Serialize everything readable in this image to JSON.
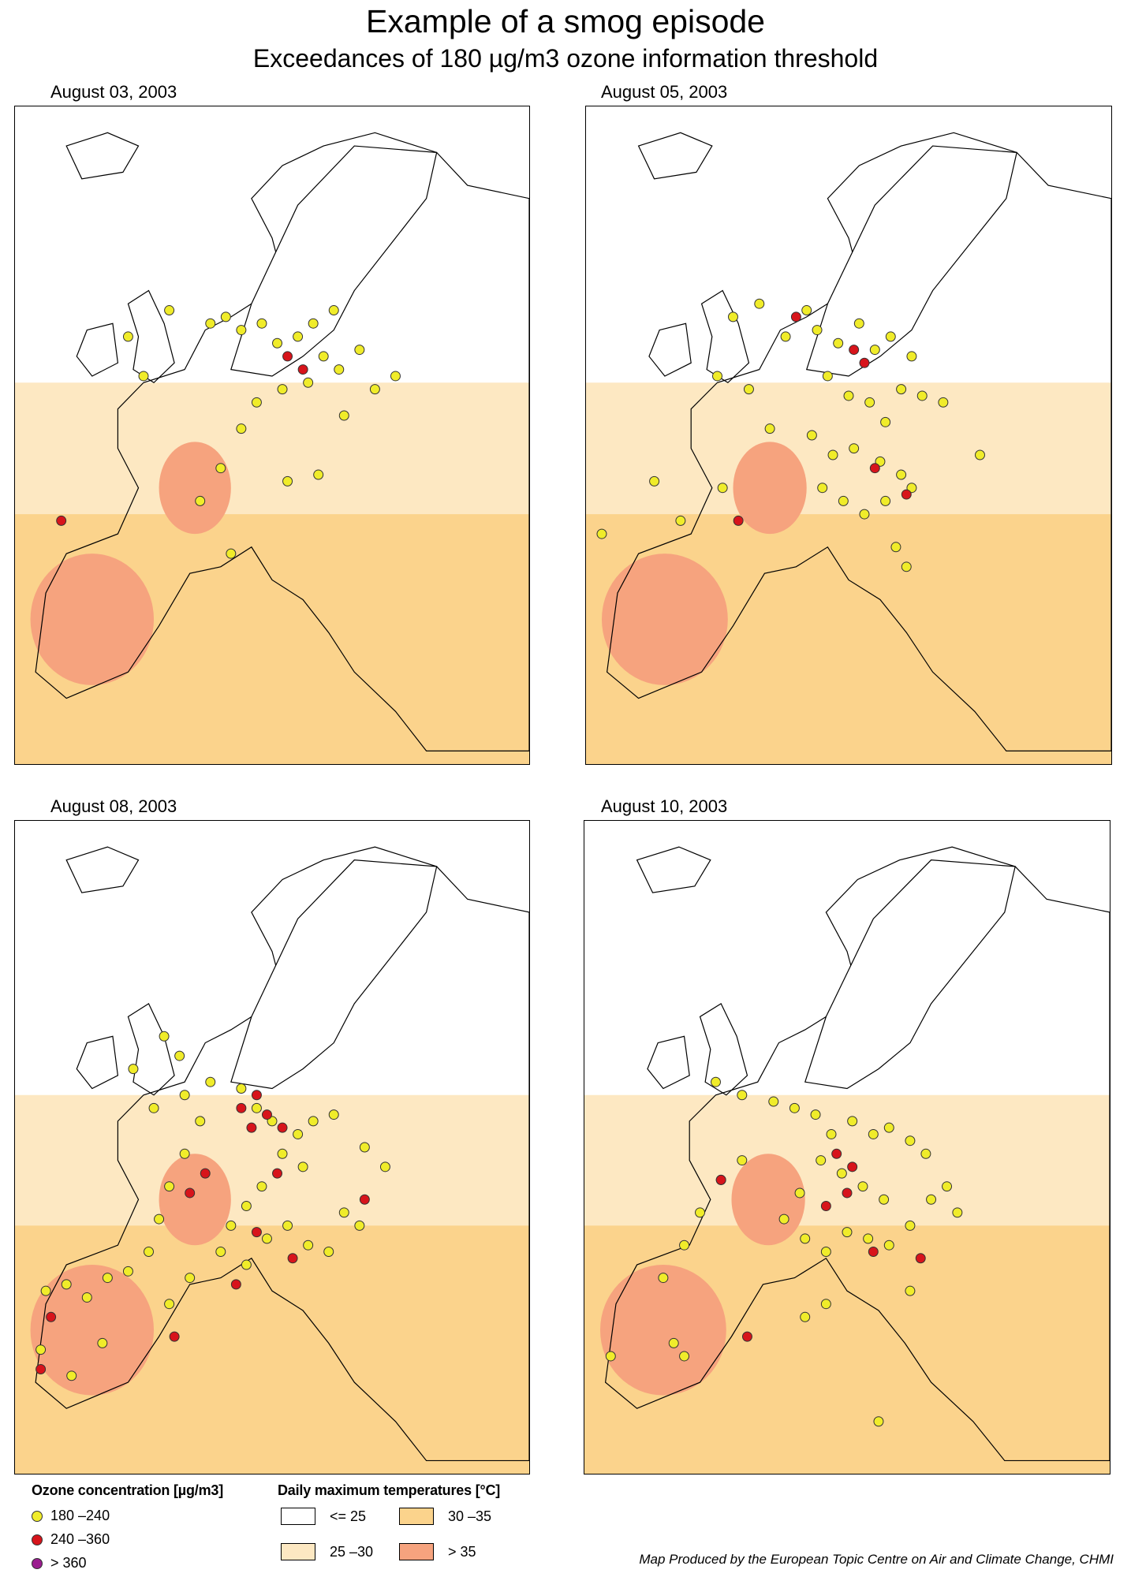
{
  "title": "Example of a smog episode",
  "subtitle": "Exceedances of 180 µg/m3 ozone information threshold",
  "colors": {
    "temp_le25": "#ffffff",
    "temp_25_30": "#fde8c2",
    "temp_30_35": "#fbd38c",
    "temp_gt35": "#f6a37e",
    "ozone_180_240": "#f0ec2a",
    "ozone_240_360": "#d7141b",
    "ozone_gt360": "#9b1d8f"
  },
  "panels": [
    {
      "date": "August 03, 2003",
      "stations_180_240": [
        [
          0.22,
          0.35
        ],
        [
          0.3,
          0.31
        ],
        [
          0.38,
          0.33
        ],
        [
          0.41,
          0.32
        ],
        [
          0.44,
          0.34
        ],
        [
          0.48,
          0.33
        ],
        [
          0.51,
          0.36
        ],
        [
          0.55,
          0.35
        ],
        [
          0.58,
          0.33
        ],
        [
          0.62,
          0.31
        ],
        [
          0.6,
          0.38
        ],
        [
          0.47,
          0.45
        ],
        [
          0.52,
          0.43
        ],
        [
          0.57,
          0.42
        ],
        [
          0.44,
          0.49
        ],
        [
          0.4,
          0.55
        ],
        [
          0.36,
          0.6
        ],
        [
          0.42,
          0.68
        ],
        [
          0.53,
          0.57
        ],
        [
          0.59,
          0.56
        ],
        [
          0.63,
          0.4
        ],
        [
          0.67,
          0.37
        ],
        [
          0.7,
          0.43
        ],
        [
          0.74,
          0.41
        ],
        [
          0.64,
          0.47
        ],
        [
          0.25,
          0.41
        ]
      ],
      "stations_240_360": [
        [
          0.53,
          0.38
        ],
        [
          0.56,
          0.4
        ],
        [
          0.09,
          0.63
        ]
      ]
    },
    {
      "date": "August 05, 2003",
      "stations_180_240": [
        [
          0.28,
          0.32
        ],
        [
          0.33,
          0.3
        ],
        [
          0.38,
          0.35
        ],
        [
          0.42,
          0.31
        ],
        [
          0.44,
          0.34
        ],
        [
          0.48,
          0.36
        ],
        [
          0.52,
          0.33
        ],
        [
          0.55,
          0.37
        ],
        [
          0.58,
          0.35
        ],
        [
          0.62,
          0.38
        ],
        [
          0.46,
          0.41
        ],
        [
          0.5,
          0.44
        ],
        [
          0.54,
          0.45
        ],
        [
          0.57,
          0.48
        ],
        [
          0.6,
          0.43
        ],
        [
          0.64,
          0.44
        ],
        [
          0.68,
          0.45
        ],
        [
          0.43,
          0.5
        ],
        [
          0.47,
          0.53
        ],
        [
          0.51,
          0.52
        ],
        [
          0.56,
          0.54
        ],
        [
          0.6,
          0.56
        ],
        [
          0.45,
          0.58
        ],
        [
          0.49,
          0.6
        ],
        [
          0.53,
          0.62
        ],
        [
          0.57,
          0.6
        ],
        [
          0.62,
          0.58
        ],
        [
          0.59,
          0.67
        ],
        [
          0.61,
          0.7
        ],
        [
          0.25,
          0.41
        ],
        [
          0.31,
          0.43
        ],
        [
          0.35,
          0.49
        ],
        [
          0.13,
          0.57
        ],
        [
          0.18,
          0.63
        ],
        [
          0.03,
          0.65
        ],
        [
          0.26,
          0.58
        ],
        [
          0.75,
          0.53
        ]
      ],
      "stations_240_360": [
        [
          0.4,
          0.32
        ],
        [
          0.51,
          0.37
        ],
        [
          0.53,
          0.39
        ],
        [
          0.55,
          0.55
        ],
        [
          0.61,
          0.59
        ],
        [
          0.29,
          0.63
        ]
      ]
    },
    {
      "date": "August 08, 2003",
      "stations_180_240": [
        [
          0.23,
          0.38
        ],
        [
          0.27,
          0.44
        ],
        [
          0.33,
          0.42
        ],
        [
          0.38,
          0.4
        ],
        [
          0.44,
          0.41
        ],
        [
          0.47,
          0.44
        ],
        [
          0.5,
          0.46
        ],
        [
          0.55,
          0.48
        ],
        [
          0.58,
          0.46
        ],
        [
          0.62,
          0.45
        ],
        [
          0.52,
          0.51
        ],
        [
          0.56,
          0.53
        ],
        [
          0.48,
          0.56
        ],
        [
          0.45,
          0.59
        ],
        [
          0.42,
          0.62
        ],
        [
          0.4,
          0.66
        ],
        [
          0.45,
          0.68
        ],
        [
          0.49,
          0.64
        ],
        [
          0.53,
          0.62
        ],
        [
          0.57,
          0.65
        ],
        [
          0.61,
          0.66
        ],
        [
          0.64,
          0.6
        ],
        [
          0.67,
          0.62
        ],
        [
          0.36,
          0.46
        ],
        [
          0.33,
          0.51
        ],
        [
          0.3,
          0.56
        ],
        [
          0.28,
          0.61
        ],
        [
          0.26,
          0.66
        ],
        [
          0.22,
          0.69
        ],
        [
          0.18,
          0.7
        ],
        [
          0.14,
          0.73
        ],
        [
          0.1,
          0.71
        ],
        [
          0.06,
          0.72
        ],
        [
          0.3,
          0.74
        ],
        [
          0.34,
          0.7
        ],
        [
          0.17,
          0.8
        ],
        [
          0.11,
          0.85
        ],
        [
          0.05,
          0.81
        ],
        [
          0.68,
          0.5
        ],
        [
          0.72,
          0.53
        ],
        [
          0.32,
          0.36
        ],
        [
          0.29,
          0.33
        ]
      ],
      "stations_240_360": [
        [
          0.44,
          0.44
        ],
        [
          0.47,
          0.42
        ],
        [
          0.49,
          0.45
        ],
        [
          0.52,
          0.47
        ],
        [
          0.46,
          0.47
        ],
        [
          0.51,
          0.54
        ],
        [
          0.37,
          0.54
        ],
        [
          0.34,
          0.57
        ],
        [
          0.47,
          0.63
        ],
        [
          0.54,
          0.67
        ],
        [
          0.43,
          0.71
        ],
        [
          0.07,
          0.76
        ],
        [
          0.05,
          0.84
        ],
        [
          0.31,
          0.79
        ],
        [
          0.68,
          0.58
        ]
      ]
    },
    {
      "date": "August 10, 2003",
      "stations_180_240": [
        [
          0.25,
          0.4
        ],
        [
          0.3,
          0.42
        ],
        [
          0.36,
          0.43
        ],
        [
          0.4,
          0.44
        ],
        [
          0.44,
          0.45
        ],
        [
          0.47,
          0.48
        ],
        [
          0.51,
          0.46
        ],
        [
          0.55,
          0.48
        ],
        [
          0.58,
          0.47
        ],
        [
          0.62,
          0.49
        ],
        [
          0.65,
          0.51
        ],
        [
          0.45,
          0.52
        ],
        [
          0.49,
          0.54
        ],
        [
          0.53,
          0.56
        ],
        [
          0.57,
          0.58
        ],
        [
          0.41,
          0.57
        ],
        [
          0.38,
          0.61
        ],
        [
          0.42,
          0.64
        ],
        [
          0.46,
          0.66
        ],
        [
          0.5,
          0.63
        ],
        [
          0.54,
          0.64
        ],
        [
          0.58,
          0.65
        ],
        [
          0.62,
          0.62
        ],
        [
          0.66,
          0.58
        ],
        [
          0.69,
          0.56
        ],
        [
          0.71,
          0.6
        ],
        [
          0.3,
          0.52
        ],
        [
          0.26,
          0.55
        ],
        [
          0.22,
          0.6
        ],
        [
          0.19,
          0.65
        ],
        [
          0.15,
          0.7
        ],
        [
          0.05,
          0.82
        ],
        [
          0.17,
          0.8
        ],
        [
          0.19,
          0.82
        ],
        [
          0.46,
          0.74
        ],
        [
          0.42,
          0.76
        ],
        [
          0.62,
          0.72
        ],
        [
          0.56,
          0.92
        ]
      ],
      "stations_240_360": [
        [
          0.48,
          0.51
        ],
        [
          0.51,
          0.53
        ],
        [
          0.5,
          0.57
        ],
        [
          0.46,
          0.59
        ],
        [
          0.55,
          0.66
        ],
        [
          0.64,
          0.67
        ],
        [
          0.31,
          0.79
        ],
        [
          0.26,
          0.55
        ]
      ]
    }
  ],
  "legend": {
    "ozone_title": "Ozone concentration [µg/m3]",
    "ozone_items": [
      {
        "label": "180 –240",
        "color": "#f0ec2a"
      },
      {
        "label": "240 –360",
        "color": "#d7141b"
      },
      {
        "label": "> 360",
        "color": "#9b1d8f"
      }
    ],
    "temp_title": "Daily maximum temperatures [°C]",
    "temp_items": [
      {
        "label": "<= 25",
        "color": "#ffffff"
      },
      {
        "label": "30 –35",
        "color": "#fbd38c"
      },
      {
        "label": "25 –30",
        "color": "#fde8c2"
      },
      {
        "label": "> 35",
        "color": "#f6a37e"
      }
    ]
  },
  "credit": "Map Produced by the European Topic Centre on Air and Climate Change, CHMI"
}
